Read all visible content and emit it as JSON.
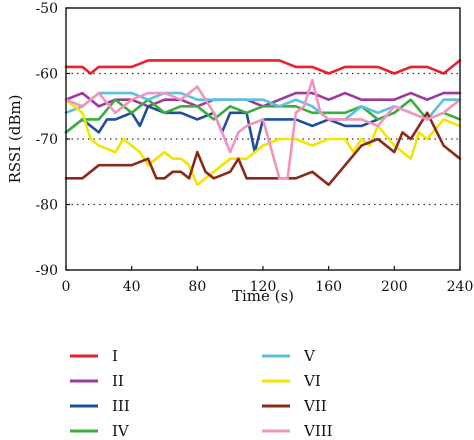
{
  "chart_data": {
    "type": "line",
    "title": "",
    "xlabel": "Time (s)",
    "ylabel": "RSSI (dBm)",
    "xlim": [
      0,
      240
    ],
    "ylim": [
      -90,
      -50
    ],
    "xticks": [
      0,
      40,
      80,
      120,
      160,
      200,
      240
    ],
    "yticks": [
      -90,
      -80,
      -70,
      -60,
      -50
    ],
    "x_tick_labels": [
      "0",
      "40",
      "80",
      "120",
      "160",
      "200",
      "240"
    ],
    "y_tick_labels": [
      "-90",
      "-80",
      "-70",
      "-60",
      "-50"
    ],
    "grid": {
      "horizontal_dotted_at": [
        -80,
        -70,
        -60
      ]
    },
    "legend_position": "bottom",
    "series": [
      {
        "name": "I",
        "color": "#e8202a",
        "x": [
          0,
          10,
          15,
          20,
          30,
          40,
          50,
          60,
          70,
          80,
          90,
          100,
          110,
          120,
          130,
          140,
          150,
          160,
          170,
          180,
          190,
          200,
          210,
          220,
          230,
          240
        ],
        "y": [
          -59,
          -59,
          -60,
          -59,
          -59,
          -59,
          -58,
          -58,
          -58,
          -58,
          -58,
          -58,
          -58,
          -58,
          -58,
          -59,
          -59,
          -60,
          -59,
          -59,
          -59,
          -60,
          -59,
          -59,
          -60,
          -58
        ]
      },
      {
        "name": "II",
        "color": "#9c3a9a",
        "x": [
          0,
          10,
          20,
          30,
          40,
          50,
          60,
          70,
          80,
          90,
          100,
          110,
          120,
          130,
          140,
          150,
          160,
          170,
          180,
          190,
          200,
          210,
          220,
          230,
          240
        ],
        "y": [
          -64,
          -63,
          -65,
          -64,
          -64,
          -65,
          -64,
          -64,
          -65,
          -64,
          -64,
          -64,
          -65,
          -64,
          -63,
          -63,
          -64,
          -63,
          -64,
          -64,
          -64,
          -63,
          -64,
          -63,
          -63
        ]
      },
      {
        "name": "III",
        "color": "#1f4e9e",
        "x": [
          0,
          10,
          20,
          25,
          30,
          40,
          45,
          50,
          60,
          70,
          80,
          90,
          95,
          100,
          110,
          115,
          120,
          130,
          140,
          150,
          160,
          170,
          180,
          190
        ],
        "y": [
          -69,
          -67,
          -69,
          -67,
          -67,
          -66,
          -68,
          -65,
          -66,
          -66,
          -67,
          -66,
          -69,
          -66,
          -66,
          -72,
          -67,
          -67,
          -67,
          -68,
          -67,
          -68,
          -68,
          -67
        ]
      },
      {
        "name": "IV",
        "color": "#3aae3a",
        "x": [
          0,
          10,
          20,
          30,
          40,
          50,
          60,
          70,
          80,
          90,
          100,
          110,
          120,
          130,
          140,
          150,
          160,
          170,
          180,
          190,
          200,
          210,
          220,
          230,
          240
        ],
        "y": [
          -69,
          -67,
          -67,
          -64,
          -66,
          -64,
          -66,
          -65,
          -65,
          -67,
          -65,
          -66,
          -65,
          -65,
          -65,
          -66,
          -66,
          -66,
          -65,
          -67,
          -66,
          -64,
          -67,
          -66,
          -67
        ]
      },
      {
        "name": "V",
        "color": "#5bc0de",
        "x": [
          0,
          10,
          20,
          30,
          40,
          50,
          60,
          70,
          80,
          90,
          100,
          110,
          120,
          130,
          140,
          150,
          160,
          170,
          180,
          190,
          200,
          210,
          220,
          230,
          240
        ],
        "y": [
          -66,
          -65,
          -63,
          -63,
          -63,
          -64,
          -63,
          -63,
          -64,
          -64,
          -64,
          -64,
          -64,
          -65,
          -64,
          -65,
          -67,
          -67,
          -65,
          -66,
          -65,
          -66,
          -67,
          -64,
          -64
        ]
      },
      {
        "name": "VI",
        "color": "#f2e600",
        "x": [
          0,
          10,
          15,
          20,
          30,
          35,
          40,
          45,
          50,
          55,
          60,
          65,
          70,
          75,
          80,
          85,
          90,
          100,
          110,
          120,
          130,
          140,
          150,
          160,
          170,
          175,
          180,
          185,
          190,
          200,
          210,
          215,
          220,
          230,
          240
        ],
        "y": [
          -64,
          -66,
          -70,
          -71,
          -72,
          -70,
          -71,
          -72,
          -74,
          -73,
          -72,
          -73,
          -73,
          -74,
          -77,
          -76,
          -75,
          -73,
          -73,
          -71,
          -70,
          -70,
          -71,
          -70,
          -70,
          -72,
          -70,
          -71,
          -68,
          -71,
          -73,
          -69,
          -70,
          -67,
          -68
        ]
      },
      {
        "name": "VII",
        "color": "#8b2a1a",
        "x": [
          0,
          10,
          20,
          30,
          40,
          50,
          55,
          60,
          65,
          70,
          75,
          80,
          85,
          90,
          100,
          105,
          110,
          120,
          130,
          140,
          150,
          160,
          170,
          180,
          190,
          200,
          205,
          210,
          220,
          230,
          240
        ],
        "y": [
          -76,
          -76,
          -74,
          -74,
          -74,
          -73,
          -76,
          -76,
          -75,
          -75,
          -76,
          -72,
          -75,
          -76,
          -75,
          -73,
          -76,
          -76,
          -76,
          -76,
          -75,
          -77,
          -74,
          -71,
          -70,
          -72,
          -69,
          -70,
          -66,
          -71,
          -73
        ]
      },
      {
        "name": "VIII",
        "color": "#f394c0",
        "x": [
          0,
          10,
          20,
          30,
          40,
          50,
          60,
          70,
          80,
          90,
          100,
          105,
          110,
          120,
          130,
          135,
          140,
          145,
          150,
          155,
          160,
          170,
          180,
          190,
          200,
          210,
          220,
          230,
          240
        ],
        "y": [
          -64,
          -65,
          -63,
          -66,
          -64,
          -63,
          -63,
          -64,
          -62,
          -66,
          -72,
          -69,
          -68,
          -67,
          -76,
          -76,
          -66,
          -65,
          -61,
          -66,
          -67,
          -67,
          -67,
          -68,
          -65,
          -66,
          -67,
          -66,
          -64
        ]
      }
    ]
  }
}
